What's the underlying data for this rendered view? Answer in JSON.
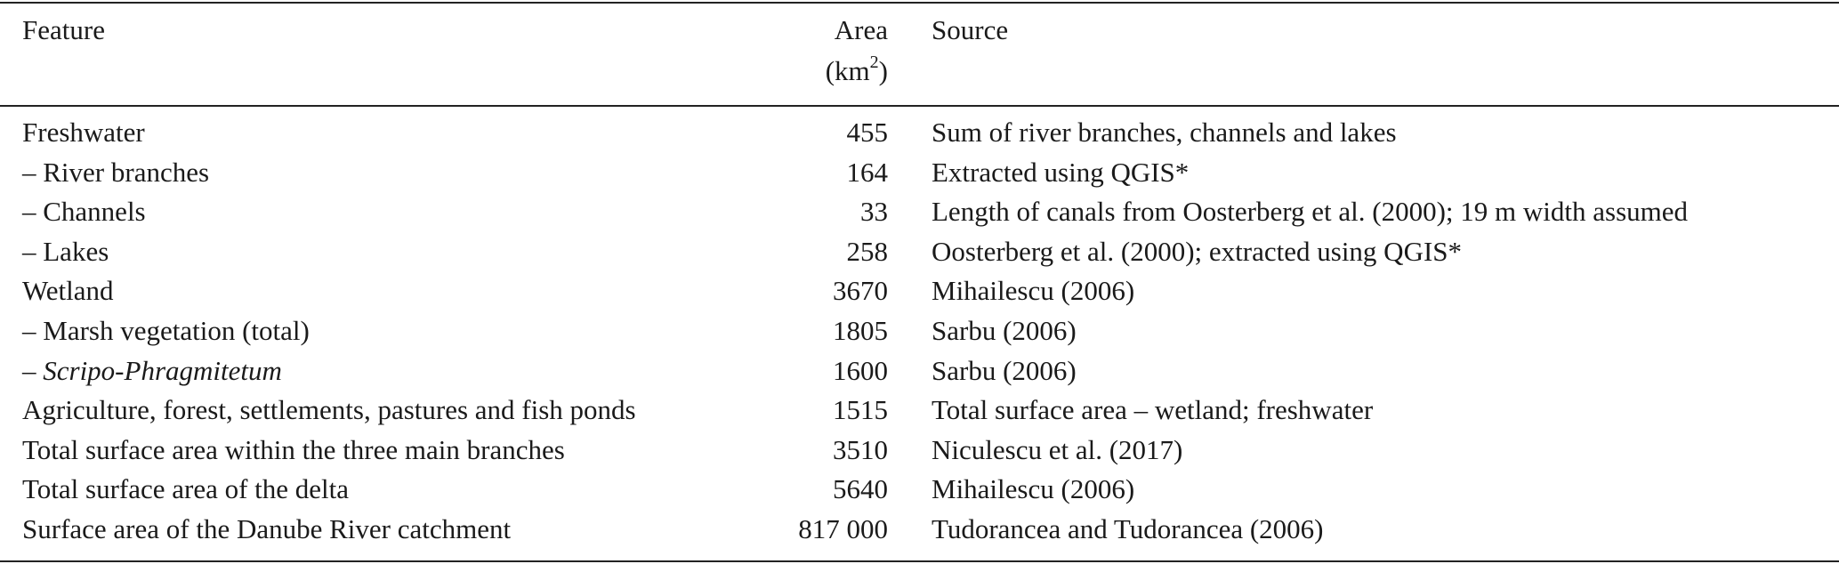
{
  "table": {
    "header": {
      "feature": "Feature",
      "area": "Area",
      "area_unit": {
        "open": "(km",
        "power": "2",
        "close": ")"
      },
      "source": "Source"
    },
    "rows": [
      [
        "Freshwater",
        "455",
        "Sum of river branches, channels and lakes"
      ],
      [
        "– River branches",
        "164",
        "Extracted using QGIS*"
      ],
      [
        "– Channels",
        "33",
        "Length of canals from Oosterberg et al. (2000); 19 m width assumed"
      ],
      [
        "– Lakes",
        "258",
        "Oosterberg et al. (2000); extracted using QGIS*"
      ],
      [
        "Wetland",
        "3670",
        "Mihailescu (2006)"
      ],
      [
        "– Marsh vegetation (total)",
        "1805",
        "Sarbu (2006)"
      ],
      [
        {
          "prefix": "– ",
          "italic": "Scripo-Phragmitetum"
        },
        "1600",
        "Sarbu (2006)"
      ],
      [
        "Agriculture, forest, settlements, pastures and fish ponds",
        "1515",
        "Total surface area – wetland; freshwater"
      ],
      [
        "Total surface area within the three main branches",
        "3510",
        "Niculescu et al. (2017)"
      ],
      [
        "Total surface area of the delta",
        "5640",
        "Mihailescu (2006)"
      ],
      [
        "Surface area of the Danube River catchment",
        "817 000",
        "Tudorancea and Tudorancea (2006)"
      ]
    ]
  }
}
